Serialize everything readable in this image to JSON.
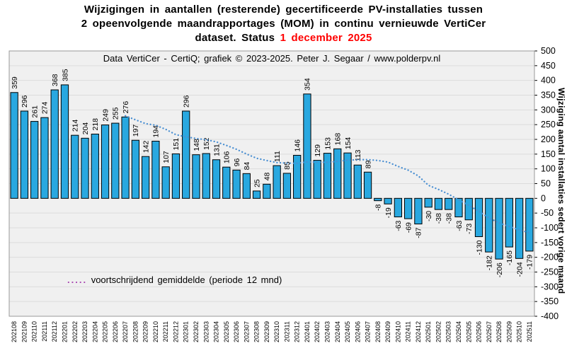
{
  "title": {
    "line1": "Wijzigingen in aantallen (resterende) gecertificeerde PV-installaties tussen",
    "line2": "2 opeenvolgende maandrapportages (MOM) in continu vernieuwde VertiCer",
    "line3_prefix": "dataset. Status ",
    "line3_highlight": "1 december 2025"
  },
  "subtitle": "Data VertiCer - CertiQ; grafiek © 2023-2025.  Peter J. Segaar / www.polderpv.nl",
  "legend": {
    "dots": ".....",
    "label": "voortschrijdend gemiddelde  (periode 12 mnd)"
  },
  "y_axis_title": "Wijziging aantal installaties sedert vorige maand",
  "colors": {
    "bar_fill": "#29a8e0",
    "bar_border": "#000000",
    "ma_line": "#4a8fd2",
    "legend_dots": "#a845b0",
    "plot_bg": "#f0f0f0",
    "gridline": "#dcdcdc",
    "plot_border": "#9a9a9a",
    "title_highlight": "#ff0000"
  },
  "chart_data": {
    "type": "bar",
    "title": "Wijzigingen in aantallen (resterende) gecertificeerde PV-installaties tussen 2 opeenvolgende maandrapportages (MOM) in continu vernieuwde VertiCer dataset. Status 1 december 2025",
    "xlabel": "",
    "ylabel": "Wijziging aantal installaties sedert vorige maand",
    "ylim": [
      -400,
      500
    ],
    "ytick_step": 50,
    "grid": true,
    "legend_position": "bottom-left",
    "categories": [
      "202108",
      "202109",
      "202110",
      "202111",
      "202112",
      "202201",
      "202202",
      "202203",
      "202204",
      "202205",
      "202206",
      "202207",
      "202208",
      "202209",
      "202210",
      "202211",
      "202212",
      "202301",
      "202302",
      "202303",
      "202304",
      "202305",
      "202306",
      "202307",
      "202308",
      "202309",
      "202310",
      "202311",
      "202312",
      "202401",
      "202402",
      "202403",
      "202404",
      "202405",
      "202406",
      "202407",
      "202408",
      "202409",
      "202410",
      "202411",
      "202412",
      "202501",
      "202502",
      "202503",
      "202504",
      "202505",
      "202506",
      "202507",
      "202508",
      "202509",
      "202510",
      "202511"
    ],
    "values": [
      359,
      296,
      261,
      274,
      368,
      385,
      214,
      204,
      218,
      249,
      255,
      276,
      197,
      142,
      194,
      107,
      151,
      296,
      148,
      152,
      131,
      106,
      96,
      84,
      25,
      48,
      111,
      85,
      146,
      354,
      129,
      153,
      168,
      154,
      113,
      89,
      -8,
      -19,
      -63,
      -69,
      -87,
      -30,
      -38,
      -38,
      -63,
      -73,
      -130,
      -182,
      -206,
      -165,
      -204,
      -179
    ],
    "series": [
      {
        "name": "voortschrijdend gemiddelde (periode 12 mnd)",
        "type": "dotted-line",
        "values": [
          null,
          null,
          null,
          null,
          null,
          null,
          null,
          null,
          null,
          null,
          null,
          279.9,
          266.4,
          253.6,
          248,
          234.1,
          216,
          208.6,
          203.1,
          198.8,
          191.5,
          179.6,
          166.3,
          150.3,
          136,
          128.2,
          121.3,
          119.4,
          119,
          123.8,
          122.3,
          122.3,
          125.4,
          129.4,
          130.8,
          131.3,
          128.5,
          122.9,
          108.4,
          95.6,
          76.2,
          44.2,
          30.3,
          14.3,
          -4.9,
          -23.8,
          -44.1,
          -66.7,
          -83.2,
          -95.3,
          -107.1,
          -116.3
        ]
      }
    ]
  }
}
